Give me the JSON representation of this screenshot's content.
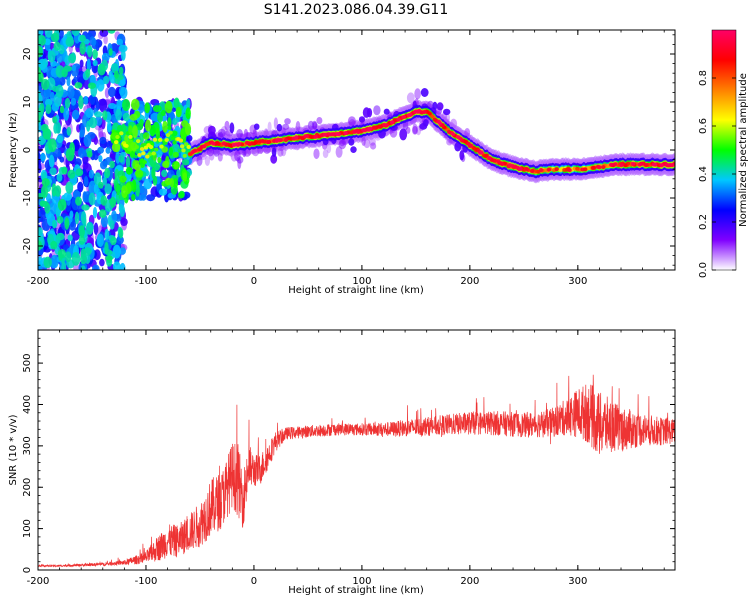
{
  "title": "S141.2023.086.04.39.G11",
  "chart_data": [
    {
      "type": "heatmap",
      "xlabel": "Height of straight line (km)",
      "ylabel": "Frequency (Hz)",
      "xlim": [
        -200,
        390
      ],
      "ylim": [
        -25,
        25
      ],
      "xticks": [
        -200,
        -100,
        0,
        100,
        200,
        300
      ],
      "yticks": [
        -20,
        -10,
        0,
        10,
        20
      ],
      "colorbar": {
        "label": "Normalized spectral amplitude",
        "range": [
          0,
          1
        ],
        "ticks": [
          "0.0",
          "0.2",
          "0.4",
          "0.6",
          "0.8"
        ],
        "colors": [
          "#ffffff",
          "#8000ff",
          "#0000ff",
          "#00c8ff",
          "#00ff00",
          "#ffff00",
          "#ff8000",
          "#ff0000",
          "#ff0066"
        ]
      },
      "ridge": {
        "x": [
          -140,
          -120,
          -100,
          -80,
          -60,
          -40,
          -20,
          0,
          20,
          40,
          60,
          80,
          100,
          120,
          140,
          150,
          160,
          170,
          180,
          200,
          220,
          240,
          260,
          280,
          300,
          320,
          340,
          360,
          390
        ],
        "y": [
          4,
          2,
          -1,
          3,
          -1,
          1.5,
          1,
          1.5,
          2,
          2.5,
          3,
          3.5,
          4,
          5,
          7,
          8,
          8,
          6,
          4,
          1,
          -2,
          -3.5,
          -4.5,
          -4,
          -4,
          -3.5,
          -3,
          -3,
          -3
        ]
      },
      "grid": false
    },
    {
      "type": "line",
      "xlabel": "Height of straight line (km)",
      "ylabel": "SNR (10 * v/v)",
      "xlim": [
        -200,
        390
      ],
      "ylim": [
        0,
        580
      ],
      "xticks": [
        -200,
        -100,
        0,
        100,
        200,
        300
      ],
      "yticks": [
        0,
        100,
        200,
        300,
        400,
        500
      ],
      "series": [
        {
          "color": "#ee3333",
          "x": [
            -200,
            -180,
            -160,
            -140,
            -120,
            -100,
            -90,
            -80,
            -70,
            -60,
            -50,
            -40,
            -30,
            -20,
            -15,
            -10,
            -5,
            0,
            5,
            10,
            20,
            30,
            50,
            75,
            100,
            125,
            150,
            175,
            200,
            225,
            250,
            275,
            290,
            300,
            310,
            320,
            330,
            340,
            360,
            375,
            390
          ],
          "y": [
            10,
            10,
            12,
            14,
            18,
            30,
            50,
            70,
            70,
            90,
            110,
            150,
            170,
            230,
            220,
            170,
            250,
            240,
            240,
            260,
            310,
            330,
            335,
            340,
            340,
            340,
            345,
            350,
            355,
            355,
            350,
            355,
            370,
            380,
            380,
            350,
            350,
            340,
            340,
            335,
            335
          ],
          "noise": [
            2,
            2,
            3,
            4,
            6,
            15,
            30,
            40,
            40,
            45,
            55,
            70,
            70,
            80,
            90,
            70,
            60,
            40,
            40,
            35,
            25,
            15,
            15,
            15,
            15,
            18,
            22,
            25,
            28,
            30,
            30,
            35,
            45,
            60,
            75,
            80,
            65,
            55,
            40,
            35,
            30
          ]
        }
      ],
      "grid": false
    }
  ]
}
